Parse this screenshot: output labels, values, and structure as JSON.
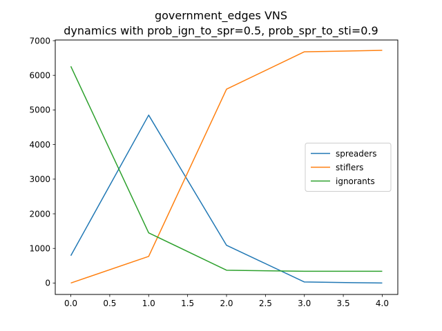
{
  "chart_data": {
    "type": "line",
    "title": "government_edges VNS",
    "subtitle": "dynamics with prob_ign_to_spr=0.5, prob_spr_to_sti=0.9",
    "xlabel": "",
    "ylabel": "",
    "x": [
      0,
      1,
      2,
      3,
      4
    ],
    "xlim": [
      -0.2,
      4.2
    ],
    "ylim": [
      -330,
      7020
    ],
    "xticks": [
      0.0,
      0.5,
      1.0,
      1.5,
      2.0,
      2.5,
      3.0,
      3.5,
      4.0
    ],
    "xtick_labels": [
      "0.0",
      "0.5",
      "1.0",
      "1.5",
      "2.0",
      "2.5",
      "3.0",
      "3.5",
      "4.0"
    ],
    "yticks": [
      0,
      1000,
      2000,
      3000,
      4000,
      5000,
      6000,
      7000
    ],
    "ytick_labels": [
      "0",
      "1000",
      "2000",
      "3000",
      "4000",
      "5000",
      "6000",
      "7000"
    ],
    "grid": false,
    "legend_position": "center-right",
    "series": [
      {
        "name": "spreaders",
        "color": "#1f77b4",
        "values": [
          790,
          4850,
          1090,
          30,
          0
        ]
      },
      {
        "name": "stiflers",
        "color": "#ff7f0e",
        "values": [
          0,
          770,
          5600,
          6680,
          6720
        ]
      },
      {
        "name": "ignorants",
        "color": "#2ca02c",
        "values": [
          6260,
          1450,
          370,
          340,
          340
        ]
      }
    ]
  }
}
